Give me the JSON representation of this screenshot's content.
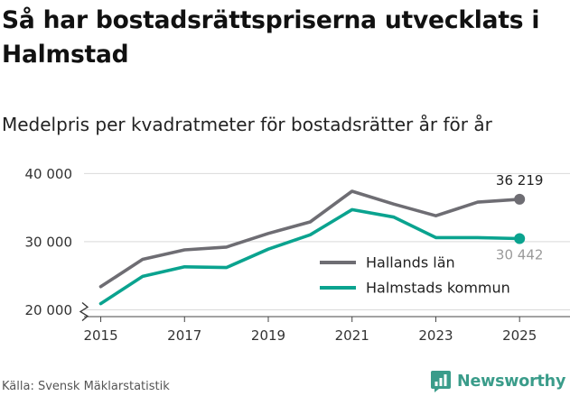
{
  "title": "Så har bostadsrättspriserna utvecklats i Halmstad",
  "subtitle": "Medelpris per kvadratmeter för bostadsrätter år för år",
  "source": "Källa: Svensk Mäklarstatistik",
  "brand": {
    "name": "Newsworthy",
    "icon": "newsworthy-logo-icon",
    "color": "#3a9c8a"
  },
  "chart_data": {
    "type": "line",
    "x": [
      2015,
      2016,
      2017,
      2018,
      2019,
      2020,
      2021,
      2022,
      2023,
      2024,
      2025
    ],
    "xticks": [
      "2015",
      "2017",
      "2019",
      "2021",
      "2023",
      "2025"
    ],
    "yticks": [
      "20 000",
      "30 000",
      "40 000"
    ],
    "ytick_values": [
      20000,
      30000,
      40000
    ],
    "xlim": [
      2014.6,
      2025.6
    ],
    "ylim": [
      19000,
      41500
    ],
    "axis_break": true,
    "grid": true,
    "legend_position": "right",
    "series": [
      {
        "name": "Hallands län",
        "color": "#6e6d73",
        "values": [
          23400,
          27400,
          28800,
          29200,
          31200,
          32900,
          37400,
          35500,
          33800,
          35800,
          36219
        ],
        "end_label": "36 219"
      },
      {
        "name": "Halmstads kommun",
        "color": "#0aa38f",
        "values": [
          20900,
          24900,
          26300,
          26200,
          28900,
          31000,
          34700,
          33600,
          30600,
          30600,
          30442
        ],
        "end_label": "30 442"
      }
    ]
  }
}
